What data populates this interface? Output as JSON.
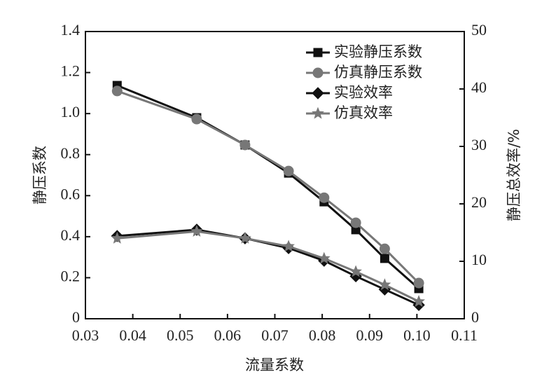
{
  "chart_data": {
    "type": "line",
    "xlabel": "流量系数",
    "ylabel": "静压系数",
    "y2label": "静压总效率/%",
    "x": [
      0.0367,
      0.0535,
      0.0637,
      0.0729,
      0.0804,
      0.0871,
      0.0932,
      0.1004
    ],
    "xlim": [
      0.03,
      0.11
    ],
    "xticks": [
      0.03,
      0.04,
      0.05,
      0.06,
      0.07,
      0.08,
      0.09,
      {
        "value": 0.1,
        "label": "0.10"
      },
      0.11
    ],
    "ylim": [
      0,
      1.4
    ],
    "yticks": [
      0,
      0.2,
      0.4,
      0.6,
      0.8,
      {
        "value": 1,
        "label": "1.0"
      },
      1.2,
      1.4
    ],
    "y2lim": [
      0,
      50
    ],
    "y2ticks": [
      0,
      10,
      20,
      30,
      40,
      50
    ],
    "legend": "upper right",
    "series": [
      {
        "name": "实验静压系数",
        "color": "#111111",
        "marker": "square",
        "values": [
          1.137,
          0.98,
          0.847,
          0.71,
          0.57,
          0.434,
          0.294,
          0.147
        ]
      },
      {
        "name": "仿真静压系数",
        "color": "#777777",
        "marker": "circle",
        "values": [
          1.11,
          0.973,
          0.847,
          0.72,
          0.59,
          0.468,
          0.341,
          0.174
        ]
      },
      {
        "name": "实验效率",
        "color": "#111111",
        "marker": "diamond",
        "axis": "y2",
        "values": [
          14.4,
          15.5,
          14.0,
          12.3,
          10.1,
          7.4,
          5.1,
          2.4
        ]
      },
      {
        "name": "仿真效率",
        "color": "#777777",
        "marker": "star",
        "axis": "y2",
        "values": [
          14.0,
          15.2,
          14.0,
          12.6,
          10.5,
          8.2,
          5.9,
          3.0
        ]
      }
    ]
  }
}
